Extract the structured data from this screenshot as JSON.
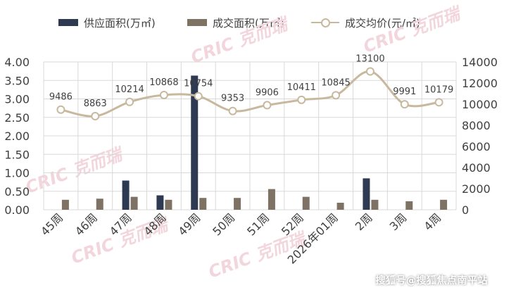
{
  "chart_data": {
    "type": "bar",
    "categories": [
      "45周",
      "46周",
      "47周",
      "48周",
      "49周",
      "50周",
      "51周",
      "52周",
      "2026年01周",
      "2周",
      "3周",
      "4周"
    ],
    "series": [
      {
        "name": "供应面积(万㎡)",
        "type": "bar",
        "axis": "left",
        "color": "#2e3a52",
        "values": [
          0,
          0,
          0.79,
          0.39,
          3.63,
          0,
          0,
          0,
          0,
          0.85,
          0,
          0
        ]
      },
      {
        "name": "成交面积(万㎡)",
        "type": "bar",
        "axis": "left",
        "color": "#7d7264",
        "values": [
          0.27,
          0.3,
          0.35,
          0.27,
          0.32,
          0.32,
          0.56,
          0.35,
          0.19,
          0.27,
          0.23,
          0.27
        ]
      },
      {
        "name": "成交均价(元/㎡)",
        "type": "line",
        "axis": "right",
        "color": "#c8b89e",
        "values": [
          9486,
          8863,
          10214,
          10868,
          10754,
          9353,
          9906,
          10411,
          10845,
          13100,
          9991,
          10179
        ]
      }
    ],
    "y_left": {
      "min": 0,
      "max": 4,
      "ticks": [
        "0.00",
        "0.50",
        "1.00",
        "1.50",
        "2.00",
        "2.50",
        "3.00",
        "3.50",
        "4.00"
      ]
    },
    "y_right": {
      "min": 0,
      "max": 14000,
      "ticks": [
        "0",
        "2000",
        "4000",
        "6000",
        "8000",
        "10000",
        "12000",
        "14000"
      ]
    },
    "grid": true,
    "legend": "top"
  },
  "watermark": "CRIC 克而瑞",
  "footer": "搜狐号@搜狐焦点南平站"
}
